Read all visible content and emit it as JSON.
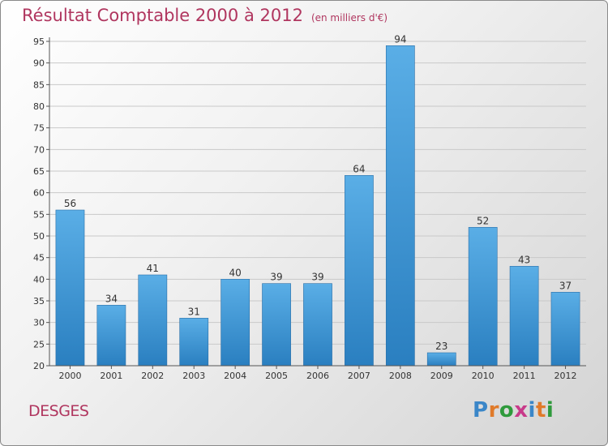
{
  "title": "Résultat Comptable 2000 à 2012",
  "subtitle": "(en milliers d'€)",
  "commune": "DESGES",
  "logo": "Proxiti",
  "colors": {
    "title": "#b0365f",
    "bar_light": "#5aaee6",
    "bar_dark": "#2a7fc0",
    "logo": [
      "#3a86c8",
      "#e07a2a",
      "#2f9a3c",
      "#c83a8a"
    ]
  },
  "chart_data": {
    "type": "bar",
    "title": "Résultat Comptable 2000 à 2012",
    "subtitle": "(en milliers d'€)",
    "categories": [
      "2000",
      "2001",
      "2002",
      "2003",
      "2004",
      "2005",
      "2006",
      "2007",
      "2008",
      "2009",
      "2010",
      "2011",
      "2012"
    ],
    "values": [
      56,
      34,
      41,
      31,
      40,
      39,
      39,
      64,
      94,
      23,
      52,
      43,
      37
    ],
    "ylim": [
      20,
      95
    ],
    "yticks": [
      20,
      25,
      30,
      35,
      40,
      45,
      50,
      55,
      60,
      65,
      70,
      75,
      80,
      85,
      90,
      95
    ],
    "grid": true,
    "data_labels": true
  }
}
